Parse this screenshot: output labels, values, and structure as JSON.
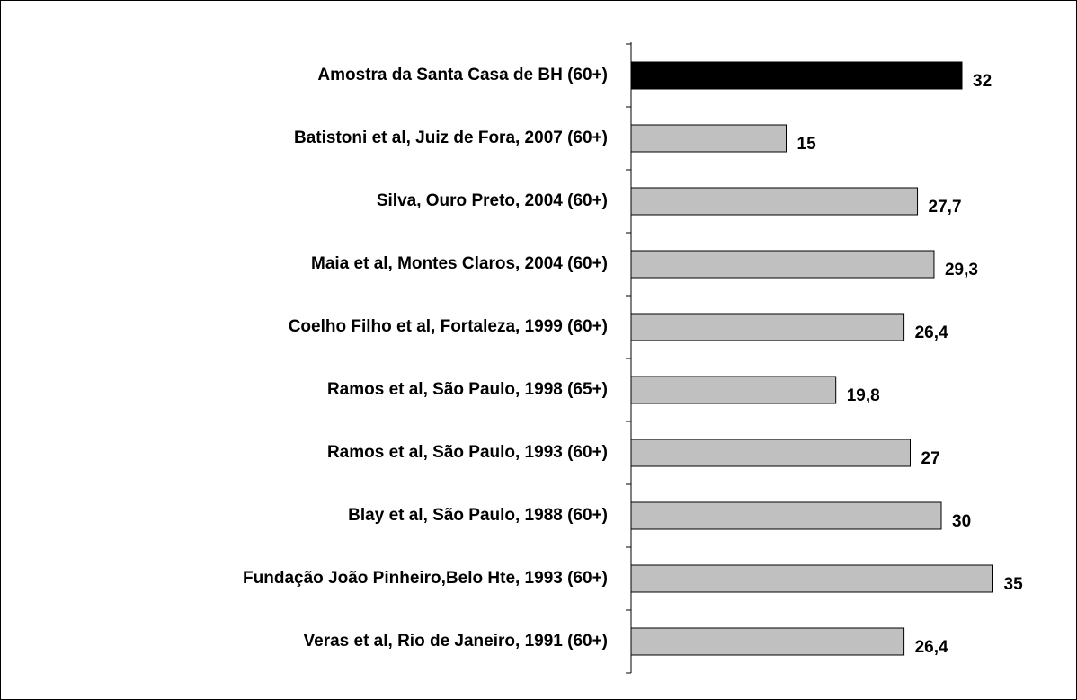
{
  "chart_data": {
    "type": "hbar",
    "categories": [
      "Amostra da Santa Casa de BH (60+)",
      "Batistoni et al, Juiz de Fora, 2007 (60+)",
      "Silva, Ouro Preto, 2004 (60+)",
      "Maia et al, Montes Claros, 2004 (60+)",
      "Coelho Filho et al, Fortaleza, 1999 (60+)",
      "Ramos et al, São Paulo, 1998 (65+)",
      "Ramos et al, São Paulo, 1993 (60+)",
      "Blay et al, São Paulo, 1988 (60+)",
      "Fundação João Pinheiro,Belo Hte, 1993 (60+)",
      "Veras et al, Rio de Janeiro, 1991 (60+)"
    ],
    "values": [
      32,
      15,
      27.7,
      29.3,
      26.4,
      19.8,
      27,
      30,
      35,
      26.4
    ],
    "value_labels": [
      "32",
      "15",
      "27,7",
      "29,3",
      "26,4",
      "19,8",
      "27",
      "30",
      "35",
      "26,4"
    ],
    "colors": [
      "#000000",
      "#c0c0c0",
      "#c0c0c0",
      "#c0c0c0",
      "#c0c0c0",
      "#c0c0c0",
      "#c0c0c0",
      "#c0c0c0",
      "#c0c0c0",
      "#c0c0c0"
    ],
    "xlim": [
      0,
      40
    ]
  }
}
